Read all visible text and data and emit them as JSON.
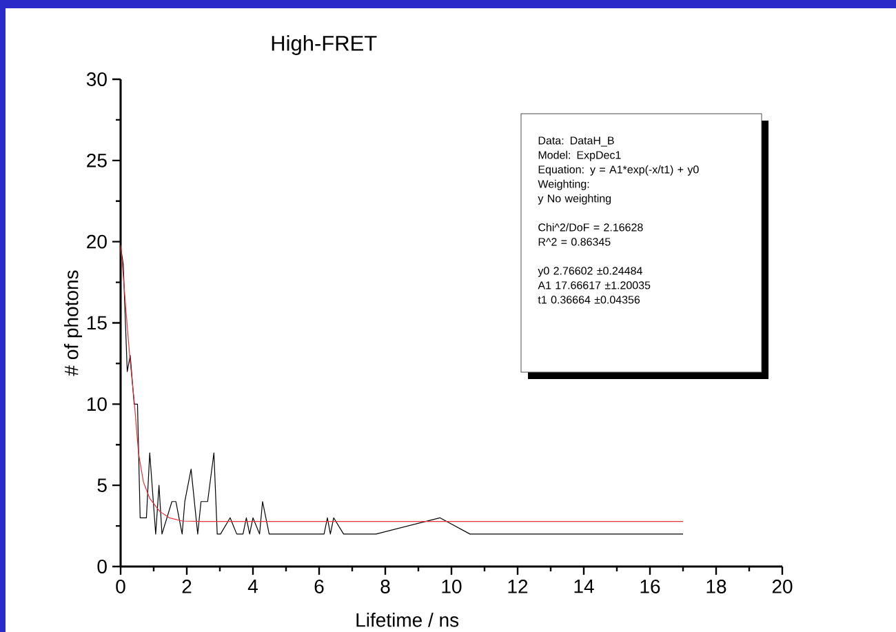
{
  "chart_data": {
    "type": "line",
    "title": "High-FRET",
    "xlabel": "Lifetime / ns",
    "ylabel": "# of photons",
    "xlim": [
      0,
      20
    ],
    "xticks": [
      0,
      2,
      4,
      6,
      8,
      10,
      12,
      14,
      16,
      18,
      20
    ],
    "ylim": [
      0,
      30
    ],
    "yticks": [
      0,
      5,
      10,
      15,
      20,
      25,
      30
    ],
    "grid": false,
    "marker": "none",
    "line_style": "solid",
    "series": [
      {
        "color": "#000000",
        "x": [
          0,
          0.08,
          0.2,
          0.29,
          0.41,
          0.51,
          0.59,
          0.78,
          0.88,
          1.06,
          1.16,
          1.25,
          1.55,
          1.67,
          1.86,
          1.94,
          2.13,
          2.33,
          2.43,
          2.63,
          2.82,
          2.92,
          3.02,
          3.31,
          3.51,
          3.7,
          3.8,
          3.9,
          4.0,
          4.2,
          4.29,
          4.49,
          6.15,
          6.25,
          6.34,
          6.44,
          6.74,
          7.72,
          9.65,
          10.56,
          17
        ],
        "values": [
          19.7,
          18.6,
          12,
          13,
          10,
          10,
          3,
          3,
          7,
          2,
          5,
          2,
          4,
          4,
          2,
          4,
          6,
          2,
          4,
          4,
          7,
          2,
          2,
          3,
          2,
          2,
          3,
          2,
          3,
          2,
          4,
          2,
          2,
          3,
          2,
          3,
          2,
          2,
          3,
          2,
          2
        ]
      },
      {
        "color": "#e8313a",
        "x": [
          0,
          0.1,
          0.2,
          0.29,
          0.41,
          0.54,
          0.69,
          0.88,
          1.18,
          1.47,
          1.86,
          2.45,
          4,
          8,
          12,
          17
        ],
        "values": [
          19.8,
          17.4,
          14.8,
          12.6,
          10.2,
          7,
          5.2,
          4.2,
          3.4,
          3.0,
          2.8,
          2.77,
          2.77,
          2.77,
          2.77,
          2.77
        ]
      }
    ],
    "annotations": [
      "Data: DataH_B",
      "Model: ExpDec1",
      "Equation: y = A1*exp(-x/t1) + y0",
      "Weighting:",
      "y No weighting",
      "Chi^2/DoF = 2.16628",
      "R^2 = 0.86345",
      "y0 2.76602 ±0.24484",
      "A1 17.66617 ±1.20035",
      "t1 0.36664 ±0.04356"
    ]
  }
}
